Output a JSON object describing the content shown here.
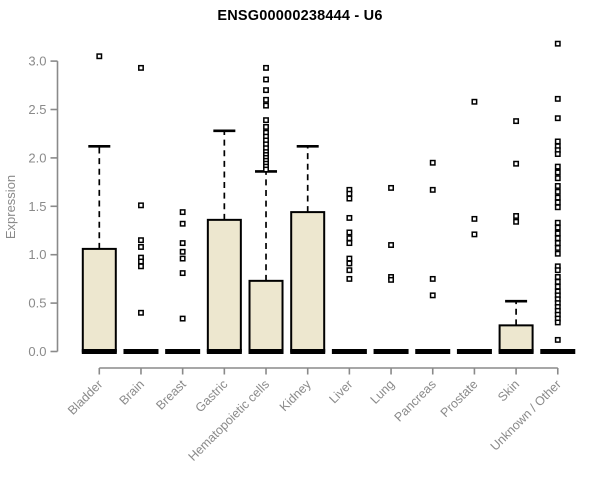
{
  "chart_data": {
    "type": "boxplot",
    "title": "ENSG00000238444 - U6",
    "xlabel": "",
    "ylabel": "Expression",
    "ylim": [
      0.0,
      3.3
    ],
    "yticks": [
      0.0,
      0.5,
      1.0,
      1.5,
      2.0,
      2.5,
      3.0
    ],
    "ytick_labels": [
      "0.0",
      "0.5",
      "1.0",
      "1.5",
      "2.0",
      "2.5",
      "3.0"
    ],
    "grid": false,
    "legend": "none",
    "colors": {
      "box_fill": "#EDE7CF",
      "box_stroke": "#000000",
      "axis": "#8a8a8a",
      "tick_label": "#8a8a8a",
      "title": "#000000"
    },
    "categories": [
      "Bladder",
      "Brain",
      "Breast",
      "Gastric",
      "Hematopoietic cells",
      "Kidney",
      "Liver",
      "Lung",
      "Pancreas",
      "Prostate",
      "Skin",
      "Unknown / Other"
    ],
    "series": [
      {
        "category": "Bladder",
        "whisker_low": 0,
        "q1": 0,
        "median": 0,
        "q3": 1.06,
        "whisker_high": 2.12,
        "outliers": [
          3.05
        ]
      },
      {
        "category": "Brain",
        "whisker_low": 0,
        "q1": 0,
        "median": 0,
        "q3": 0,
        "whisker_high": 0,
        "outliers": [
          2.93,
          1.51,
          1.15,
          1.08,
          0.97,
          0.93,
          0.88,
          0.4
        ]
      },
      {
        "category": "Breast",
        "whisker_low": 0,
        "q1": 0,
        "median": 0,
        "q3": 0,
        "whisker_high": 0,
        "outliers": [
          1.44,
          1.32,
          1.12,
          1.03,
          0.96,
          0.81,
          0.34
        ]
      },
      {
        "category": "Gastric",
        "whisker_low": 0,
        "q1": 0,
        "median": 0,
        "q3": 1.36,
        "whisker_high": 2.28,
        "outliers": []
      },
      {
        "category": "Hematopoietic cells",
        "whisker_low": 0,
        "q1": 0,
        "median": 0,
        "q3": 0.73,
        "whisker_high": 1.86,
        "outliers": [
          2.93,
          2.81,
          2.7,
          2.6,
          2.54,
          2.39,
          2.32,
          2.26,
          2.22,
          2.18,
          2.14,
          2.1,
          2.06,
          2.03,
          2.0,
          1.97,
          1.94,
          1.91,
          1.88
        ]
      },
      {
        "category": "Kidney",
        "whisker_low": 0,
        "q1": 0,
        "median": 0,
        "q3": 1.44,
        "whisker_high": 2.12,
        "outliers": []
      },
      {
        "category": "Liver",
        "whisker_low": 0,
        "q1": 0,
        "median": 0,
        "q3": 0,
        "whisker_high": 0,
        "outliers": [
          1.67,
          1.63,
          1.58,
          1.38,
          1.23,
          1.17,
          1.12,
          0.96,
          0.91,
          0.84,
          0.75
        ]
      },
      {
        "category": "Lung",
        "whisker_low": 0,
        "q1": 0,
        "median": 0,
        "q3": 0,
        "whisker_high": 0,
        "outliers": [
          1.69,
          1.1,
          0.77,
          0.74
        ]
      },
      {
        "category": "Pancreas",
        "whisker_low": 0,
        "q1": 0,
        "median": 0,
        "q3": 0,
        "whisker_high": 0,
        "outliers": [
          1.95,
          1.67,
          0.75,
          0.58
        ]
      },
      {
        "category": "Prostate",
        "whisker_low": 0,
        "q1": 0,
        "median": 0,
        "q3": 0,
        "whisker_high": 0,
        "outliers": [
          2.58,
          1.37,
          1.21
        ]
      },
      {
        "category": "Skin",
        "whisker_low": 0,
        "q1": 0,
        "median": 0,
        "q3": 0.27,
        "whisker_high": 0.52,
        "outliers": [
          2.38,
          1.94,
          1.4,
          1.34
        ]
      },
      {
        "category": "Unknown / Other",
        "whisker_low": 0,
        "q1": 0,
        "median": 0,
        "q3": 0,
        "whisker_high": 0,
        "outliers": [
          3.18,
          2.61,
          2.41,
          2.17,
          2.12,
          2.08,
          2.04,
          1.91,
          1.85,
          1.79,
          1.71,
          1.65,
          1.59,
          1.54,
          1.49,
          1.33,
          1.28,
          1.22,
          1.17,
          1.12,
          1.07,
          1.01,
          0.88,
          0.84,
          0.77,
          0.72,
          0.67,
          0.62,
          0.58,
          0.54,
          0.5,
          0.46,
          0.42,
          0.38,
          0.34,
          0.3,
          0.12
        ]
      }
    ]
  }
}
